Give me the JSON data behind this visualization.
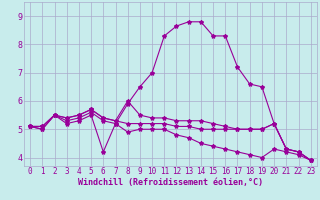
{
  "xlabel": "Windchill (Refroidissement éolien,°C)",
  "background_color": "#c8ecec",
  "grid_color": "#aaaacc",
  "line_color": "#990099",
  "xlim": [
    -0.5,
    23.5
  ],
  "ylim": [
    3.7,
    9.5
  ],
  "xticks": [
    0,
    1,
    2,
    3,
    4,
    5,
    6,
    7,
    8,
    9,
    10,
    11,
    12,
    13,
    14,
    15,
    16,
    17,
    18,
    19,
    20,
    21,
    22,
    23
  ],
  "yticks": [
    4,
    5,
    6,
    7,
    8,
    9
  ],
  "lines": [
    [
      5.1,
      5.0,
      5.5,
      5.2,
      5.3,
      5.5,
      4.2,
      5.2,
      4.9,
      5.0,
      5.0,
      5.0,
      4.8,
      4.7,
      4.5,
      4.4,
      4.3,
      4.2,
      4.1,
      4.0,
      4.3,
      4.2,
      4.1,
      3.9
    ],
    [
      5.1,
      5.0,
      5.5,
      5.3,
      5.4,
      5.6,
      5.3,
      5.2,
      5.9,
      6.5,
      7.0,
      8.3,
      8.65,
      8.8,
      8.8,
      8.3,
      8.3,
      7.2,
      6.6,
      6.5,
      5.2,
      4.3,
      4.2,
      3.9
    ],
    [
      5.1,
      5.1,
      5.5,
      5.4,
      5.5,
      5.7,
      5.4,
      5.3,
      6.0,
      5.5,
      5.4,
      5.4,
      5.3,
      5.3,
      5.3,
      5.2,
      5.1,
      5.0,
      5.0,
      5.0,
      5.2,
      4.3,
      4.2,
      3.9
    ],
    [
      5.1,
      5.1,
      5.5,
      5.4,
      5.5,
      5.7,
      5.4,
      5.3,
      5.2,
      5.2,
      5.2,
      5.2,
      5.1,
      5.1,
      5.0,
      5.0,
      5.0,
      5.0,
      5.0,
      5.0,
      5.2,
      4.3,
      4.2,
      3.9
    ]
  ],
  "marker": "*",
  "markersize": 3,
  "linewidth": 0.8,
  "tick_fontsize": 5.5,
  "xlabel_fontsize": 6.0
}
